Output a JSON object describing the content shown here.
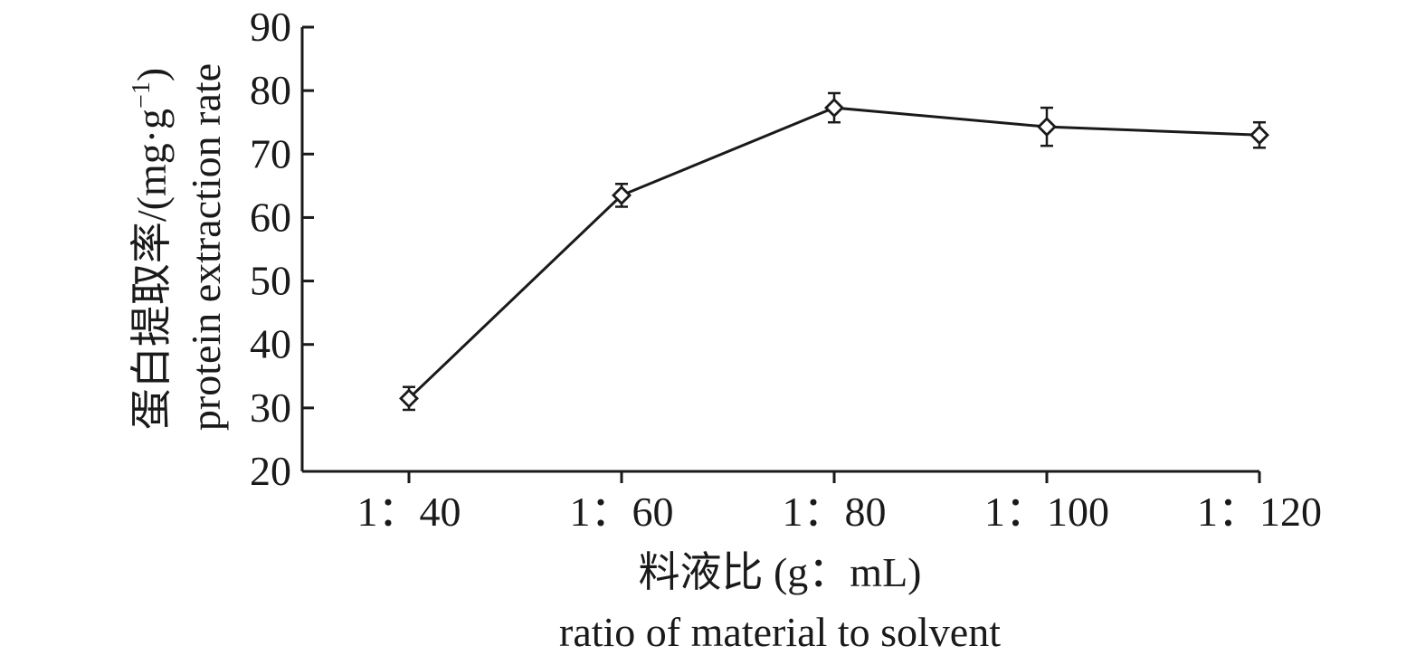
{
  "chart_data": {
    "type": "line",
    "categories": [
      "1：40",
      "1：60",
      "1：80",
      "1：100",
      "1：120"
    ],
    "series": [
      {
        "values": [
          31.5,
          63.5,
          77.3,
          74.3,
          73.0
        ],
        "errors": [
          1.8,
          1.8,
          2.3,
          3.0,
          2.0
        ]
      }
    ],
    "ylim": [
      20,
      90
    ],
    "yticks": [
      20,
      30,
      40,
      50,
      60,
      70,
      80,
      90
    ],
    "xlabel_zh": "料液比 (g：mL)",
    "xlabel_en": "ratio of material to solvent",
    "ylabel_zh": "蛋白提取率/(mg·g",
    "ylabel_sup": "−1",
    "ylabel_close": ")",
    "ylabel_en": "protein extraction rate",
    "grid": false,
    "legend": "none",
    "marker": "open-diamond",
    "line_color": "#1a1a1a"
  }
}
